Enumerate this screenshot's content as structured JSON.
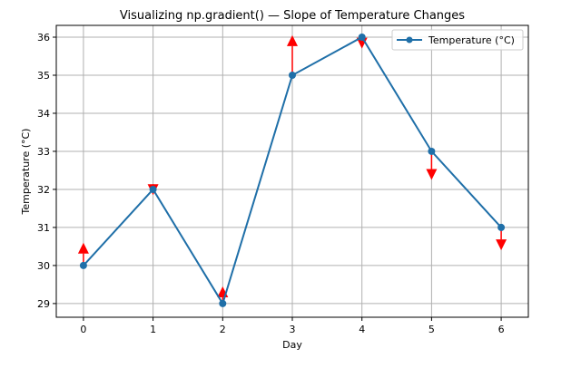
{
  "chart_data": {
    "type": "line",
    "title": "Visualizing np.gradient() — Slope of Temperature Changes",
    "xlabel": "Day",
    "ylabel": "Temperature (°C)",
    "x": [
      0,
      1,
      2,
      3,
      4,
      5,
      6
    ],
    "series": [
      {
        "name": "Temperature (°C)",
        "values": [
          30,
          32,
          29,
          35,
          36,
          33,
          31
        ],
        "color": "#1f6fa8",
        "marker": "circle"
      }
    ],
    "gradient_arrows": {
      "values": [
        2,
        -0.5,
        1.5,
        3.5,
        -1,
        -2.5,
        -2
      ],
      "color": "#ff0000"
    },
    "xticks": [
      "0",
      "1",
      "2",
      "3",
      "4",
      "5",
      "6"
    ],
    "yticks": [
      "29",
      "30",
      "31",
      "32",
      "33",
      "34",
      "35",
      "36"
    ],
    "xlim": [
      -0.39,
      6.39
    ],
    "ylim": [
      28.64,
      36.31
    ],
    "grid": true,
    "legend": "top-right"
  }
}
